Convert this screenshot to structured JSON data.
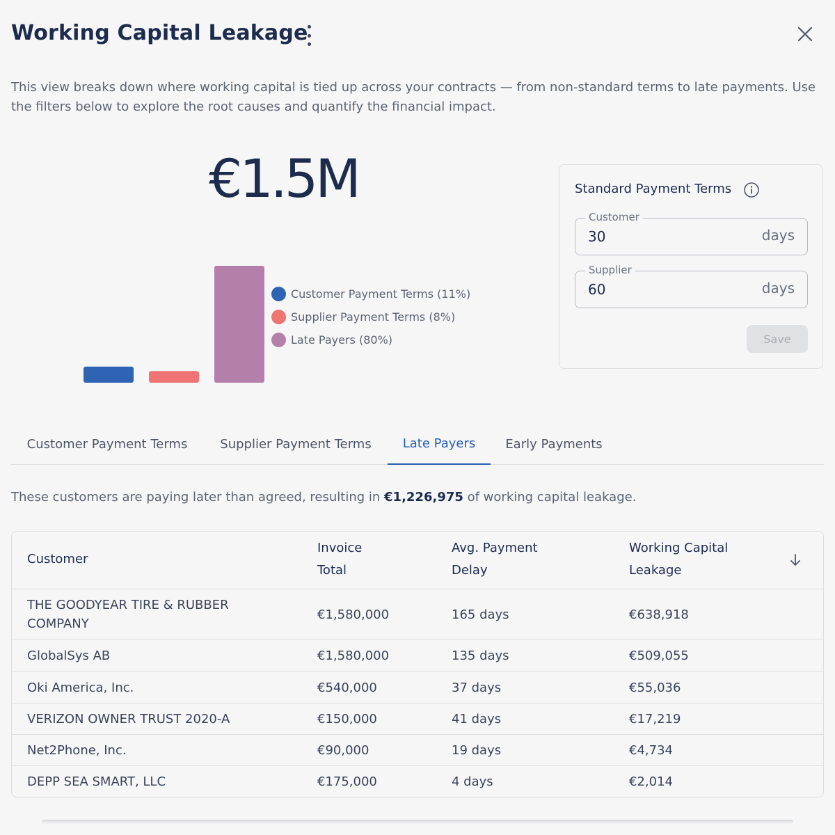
{
  "header": {
    "title": "Working Capital Leakage",
    "description": "This view breaks down where working capital is tied up across your contracts — from non-standard terms to late payments. Use the filters below to explore the root causes and quantify the financial impact."
  },
  "summary": {
    "total": "€1.5M"
  },
  "chart_data": {
    "type": "bar",
    "categories": [
      "Customer Payment Terms (11%)",
      "Supplier Payment Terms (8%)",
      "Late Payers (80%)"
    ],
    "values": [
      11,
      8,
      80
    ],
    "colors": [
      "#2f63b3",
      "#ef7473",
      "#b57fab"
    ],
    "legend_position": "right"
  },
  "terms": {
    "title": "Standard Payment Terms",
    "customer": {
      "label": "Customer",
      "value": "30",
      "unit": "days"
    },
    "supplier": {
      "label": "Supplier",
      "value": "60",
      "unit": "days"
    },
    "save_label": "Save"
  },
  "tabs": [
    {
      "label": "Customer Payment Terms"
    },
    {
      "label": "Supplier Payment Terms"
    },
    {
      "label": "Late Payers"
    },
    {
      "label": "Early Payments"
    }
  ],
  "late_payers": {
    "intro_prefix": "These customers are paying later than agreed, resulting in ",
    "intro_amount": "€1,226,975",
    "intro_suffix": " of working capital leakage.",
    "columns": [
      "Customer",
      "Invoice Total",
      "Avg. Payment Delay",
      "Working Capital Leakage"
    ],
    "column_lines": [
      [
        "Customer"
      ],
      [
        "Invoice",
        "Total"
      ],
      [
        "Avg. Payment",
        "Delay"
      ],
      [
        "Working Capital",
        "Leakage"
      ]
    ],
    "rows": [
      {
        "customer": "THE GOODYEAR TIRE & RUBBER COMPANY",
        "invoice": "€1,580,000",
        "delay": "165 days",
        "leakage": "€638,918"
      },
      {
        "customer": "GlobalSys AB",
        "invoice": "€1,580,000",
        "delay": "135 days",
        "leakage": "€509,055"
      },
      {
        "customer": "Oki America, Inc.",
        "invoice": "€540,000",
        "delay": "37 days",
        "leakage": "€55,036"
      },
      {
        "customer": "VERIZON OWNER TRUST 2020-A",
        "invoice": "€150,000",
        "delay": "41 days",
        "leakage": "€17,219"
      },
      {
        "customer": "Net2Phone, Inc.",
        "invoice": "€90,000",
        "delay": "19 days",
        "leakage": "€4,734"
      },
      {
        "customer": "DEPP SEA SMART, LLC",
        "invoice": "€175,000",
        "delay": "4 days",
        "leakage": "€2,014"
      }
    ]
  }
}
